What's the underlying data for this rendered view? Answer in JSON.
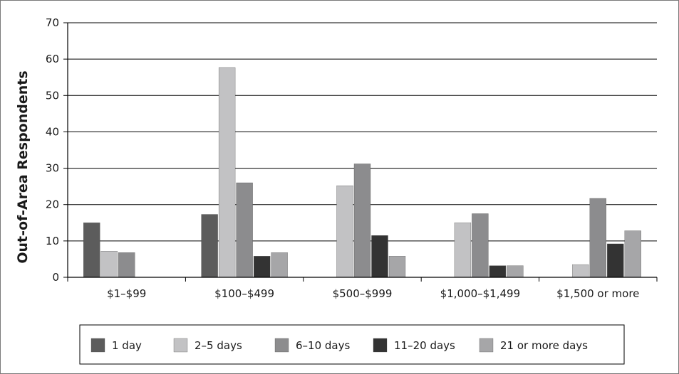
{
  "chart_data": {
    "type": "bar",
    "title": "",
    "xlabel": "",
    "ylabel": "Out-of-Area Respondents",
    "ylim": [
      0,
      70
    ],
    "yticks": [
      0,
      10,
      20,
      30,
      40,
      50,
      60,
      70
    ],
    "grid": true,
    "legend_position": "bottom",
    "categories": [
      "$1–$99",
      "$100–$499",
      "$500–$999",
      "$1,000–$1,499",
      "$1,500 or more"
    ],
    "series": [
      {
        "name": "1 day",
        "color": "#5c5c5c",
        "values": [
          15,
          17.3,
          0,
          0,
          0
        ]
      },
      {
        "name": "2–5 days",
        "color": "#c2c2c4",
        "values": [
          7.2,
          57.7,
          25.2,
          15,
          3.5
        ]
      },
      {
        "name": "6–10 days",
        "color": "#8c8c8e",
        "values": [
          6.8,
          26,
          31.2,
          17.5,
          21.7
        ]
      },
      {
        "name": "11–20 days",
        "color": "#333333",
        "values": [
          0,
          5.8,
          11.5,
          3.2,
          9.2
        ]
      },
      {
        "name": "21 or more days",
        "color": "#a6a6a8",
        "values": [
          0,
          6.8,
          5.8,
          3.2,
          12.8
        ]
      }
    ]
  }
}
